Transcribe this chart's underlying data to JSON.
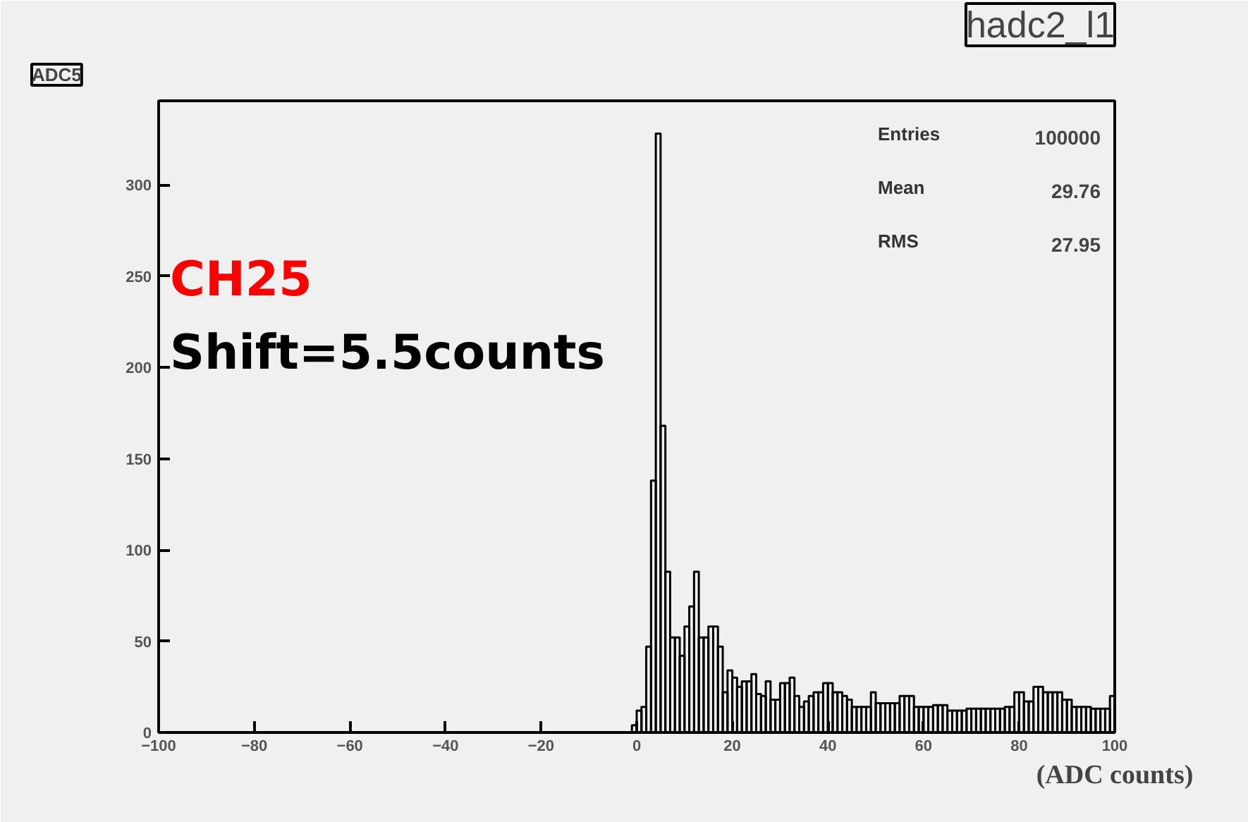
{
  "chart_data": {
    "type": "histogram",
    "title": "ADC5",
    "subtitle": "hadc2_l1",
    "xlabel": "(ADC counts)",
    "bins": [
      -1,
      0,
      1,
      2,
      3,
      4,
      5,
      6,
      7,
      8,
      9,
      10,
      11,
      12,
      13,
      14,
      15,
      16,
      17,
      18,
      19,
      20,
      21,
      22,
      23,
      24,
      25,
      26,
      27,
      28,
      29,
      30,
      31,
      32,
      33,
      34,
      35,
      36,
      37,
      38,
      39,
      40,
      41,
      42,
      43,
      44,
      45,
      46,
      47,
      48,
      49,
      50,
      51,
      52,
      53,
      54,
      55,
      56,
      57,
      58,
      59,
      60,
      61,
      62,
      63,
      64,
      65,
      66,
      67,
      68,
      69,
      70,
      71,
      72,
      73,
      74,
      75,
      76,
      77,
      78,
      79,
      80,
      81,
      82,
      83,
      84,
      85,
      86,
      87,
      88,
      89,
      90,
      91,
      92,
      93,
      94,
      95,
      96,
      97,
      98,
      99,
      100
    ],
    "values": [
      4,
      12,
      14,
      47,
      138,
      328,
      168,
      88,
      52,
      52,
      42,
      58,
      69,
      88,
      52,
      52,
      58,
      58,
      47,
      22,
      34,
      30,
      25,
      28,
      28,
      32,
      21,
      20,
      28,
      18,
      18,
      27,
      27,
      30,
      20,
      14,
      17,
      20,
      22,
      22,
      27,
      27,
      22,
      22,
      20,
      18,
      14,
      14,
      14,
      14,
      22,
      16,
      16,
      16,
      16,
      16,
      20,
      20,
      20,
      14,
      14,
      14,
      14,
      15,
      15,
      15,
      12,
      12,
      12,
      12,
      13,
      13,
      13,
      13,
      13,
      13,
      13,
      13,
      14,
      14,
      22,
      22,
      17,
      17,
      25,
      25,
      22,
      22,
      22,
      22,
      18,
      18,
      14,
      14,
      14,
      14,
      13,
      13,
      13,
      13,
      20
    ],
    "color": "#000000",
    "xlim": [
      -100,
      100
    ],
    "xticks": [
      -100,
      -80,
      -60,
      -40,
      -20,
      0,
      20,
      40,
      60,
      80,
      100
    ],
    "ylim": [
      0,
      346
    ],
    "yticks": [
      0,
      50,
      100,
      150,
      200,
      250,
      300
    ],
    "grid": false,
    "annotations": [
      "CH25",
      "Shift=5.5counts",
      "Entries 100000",
      "Mean 29.76",
      "RMS 27.95"
    ]
  }
}
